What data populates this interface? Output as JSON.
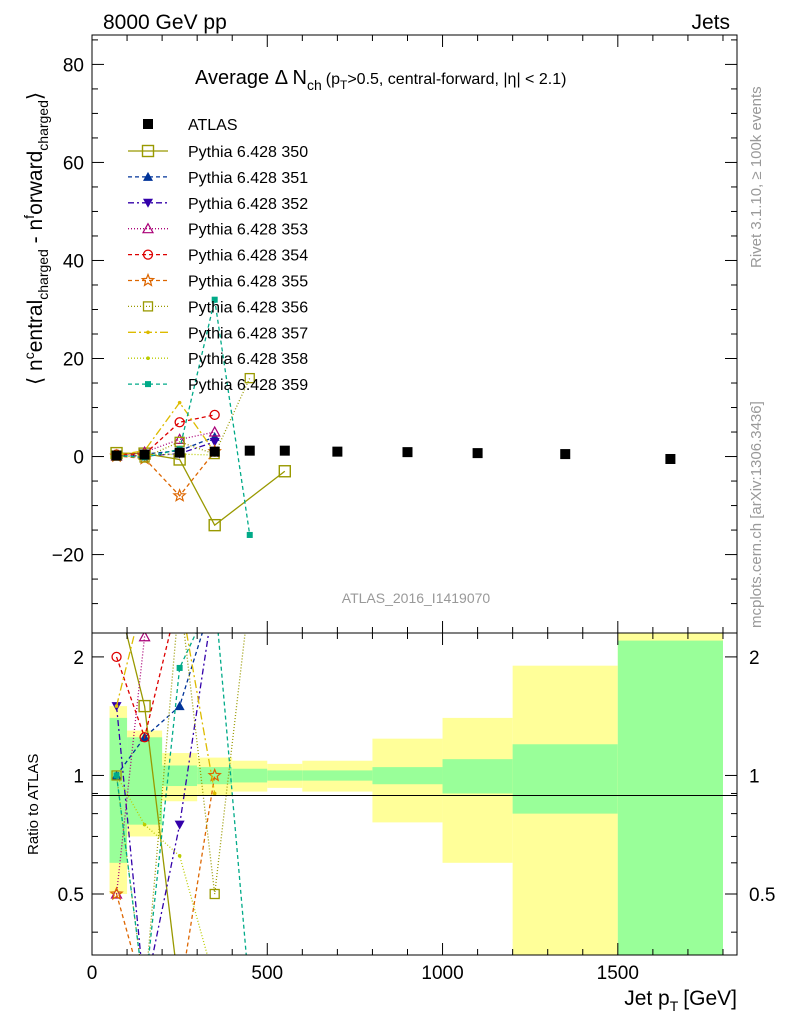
{
  "header": {
    "left": "8000 GeV pp",
    "right": "Jets"
  },
  "side_labels": {
    "rivet": "Rivet 3.1.10, ≥ 100k events",
    "mcplots": "mcplots.cern.ch [arXiv:1306.3436]"
  },
  "watermark": "ATLAS_2016_I1419070",
  "chart_data": {
    "type": "scatter",
    "title_parts": {
      "prefix": "Average Δ N",
      "sub": "ch",
      "pre_pt": "(p",
      "pt_sub": "T",
      "suffix": ">0.5, central-forward, |η| < 2.1)"
    },
    "xlabel": "Jet p",
    "xlabel_sub": "T",
    "xlabel_unit": "[GeV]",
    "ylabel_main": "⟨ n",
    "ylabel_sup_1": "c",
    "ylabel_part_1": "entral",
    "ylabel_sub_1": "charged",
    "ylabel_part_2": " - n",
    "ylabel_sup_2": "f",
    "ylabel_part_3": "orward",
    "ylabel_sub_2": "charged",
    "ylabel_end": "⟩",
    "ratio_ylabel": "Ratio to ATLAS",
    "xlim": [
      0,
      1840
    ],
    "ylim": [
      -36,
      86
    ],
    "ratio_ylim": [
      0.35,
      2.3
    ],
    "main_yticks": [
      "−20",
      "0",
      "20",
      "40",
      "60",
      "80"
    ],
    "main_ytick_values": [
      -20,
      0,
      20,
      40,
      60,
      80
    ],
    "ratio_yticks": [
      "0.5",
      "1",
      "2"
    ],
    "ratio_ytick_values": [
      0.5,
      1,
      2
    ],
    "xticks": [
      "0",
      "500",
      "1000",
      "1500"
    ],
    "xtick_values": [
      0,
      500,
      1000,
      1500
    ],
    "legend_position": "top-left",
    "atlas": {
      "name": "ATLAS",
      "x": [
        70,
        150,
        250,
        350,
        450,
        550,
        700,
        900,
        1100,
        1350,
        1650
      ],
      "y": [
        0.2,
        0.4,
        0.8,
        1.0,
        1.2,
        1.2,
        1.0,
        0.9,
        0.7,
        0.5,
        -0.5
      ],
      "bins": [
        50,
        100,
        200,
        300,
        400,
        500,
        600,
        800,
        1000,
        1200,
        1500,
        1800
      ]
    },
    "ratio_bands": {
      "green_half": [
        0.4,
        0.25,
        0.06,
        0.05,
        0.04,
        0.03,
        0.03,
        0.05,
        0.1,
        0.2,
        1.2
      ],
      "yellow_half": [
        0.5,
        0.3,
        0.14,
        0.11,
        0.09,
        0.07,
        0.09,
        0.24,
        0.4,
        0.9,
        1.5
      ]
    },
    "series": [
      {
        "name": "Pythia 6.428 350",
        "color": "#999900",
        "marker": "open-square",
        "dash": "",
        "x": [
          70,
          150,
          250,
          350,
          550
        ],
        "y": [
          0.7,
          0.6,
          -0.6,
          -14.0,
          -3.0
        ]
      },
      {
        "name": "Pythia 6.428 351",
        "color": "#003399",
        "marker": "filled-triangle-up",
        "dash": "4,3",
        "x": [
          70,
          150,
          250,
          350
        ],
        "y": [
          0.2,
          0.5,
          1.2,
          4.0
        ]
      },
      {
        "name": "Pythia 6.428 352",
        "color": "#3300aa",
        "marker": "filled-triangle-down",
        "dash": "6,3,2,3",
        "x": [
          70,
          150,
          250,
          350
        ],
        "y": [
          0.3,
          0.1,
          0.6,
          3.0
        ]
      },
      {
        "name": "Pythia 6.428 353",
        "color": "#aa0077",
        "marker": "open-triangle-up",
        "dash": "1,2",
        "x": [
          70,
          150,
          250,
          350
        ],
        "y": [
          0.1,
          0.9,
          3.5,
          5.0
        ]
      },
      {
        "name": "Pythia 6.428 354",
        "color": "#dd0000",
        "marker": "open-circle",
        "dash": "4,3",
        "x": [
          70,
          150,
          250,
          350
        ],
        "y": [
          0.4,
          0.5,
          7.0,
          8.5
        ]
      },
      {
        "name": "Pythia 6.428 355",
        "color": "#dd6600",
        "marker": "open-star",
        "dash": "4,3",
        "x": [
          70,
          150,
          250,
          350
        ],
        "y": [
          0.1,
          -0.4,
          -8.0,
          1.0
        ]
      },
      {
        "name": "Pythia 6.428 356",
        "color": "#999900",
        "marker": "open-square-small",
        "dash": "1,2",
        "x": [
          70,
          150,
          250,
          350,
          450
        ],
        "y": [
          0.2,
          -0.2,
          3.0,
          0.5,
          16.0
        ]
      },
      {
        "name": "Pythia 6.428 357",
        "color": "#ddbb00",
        "marker": "small-dot",
        "dash": "8,3,2,3",
        "x": [
          70,
          150,
          250,
          350
        ],
        "y": [
          0.3,
          1.2,
          11.0,
          0.9
        ]
      },
      {
        "name": "Pythia 6.428 358",
        "color": "#bbcc00",
        "marker": "small-dot",
        "dash": "1,2",
        "x": [
          70,
          150,
          250,
          350
        ],
        "y": [
          0.2,
          0.3,
          0.5,
          0.3
        ]
      },
      {
        "name": "Pythia 6.428 359",
        "color": "#00aa88",
        "marker": "filled-square-small",
        "dash": "4,3",
        "x": [
          70,
          150,
          250,
          350,
          450
        ],
        "y": [
          0.2,
          -0.2,
          1.5,
          32.0,
          -16.0
        ]
      }
    ]
  }
}
